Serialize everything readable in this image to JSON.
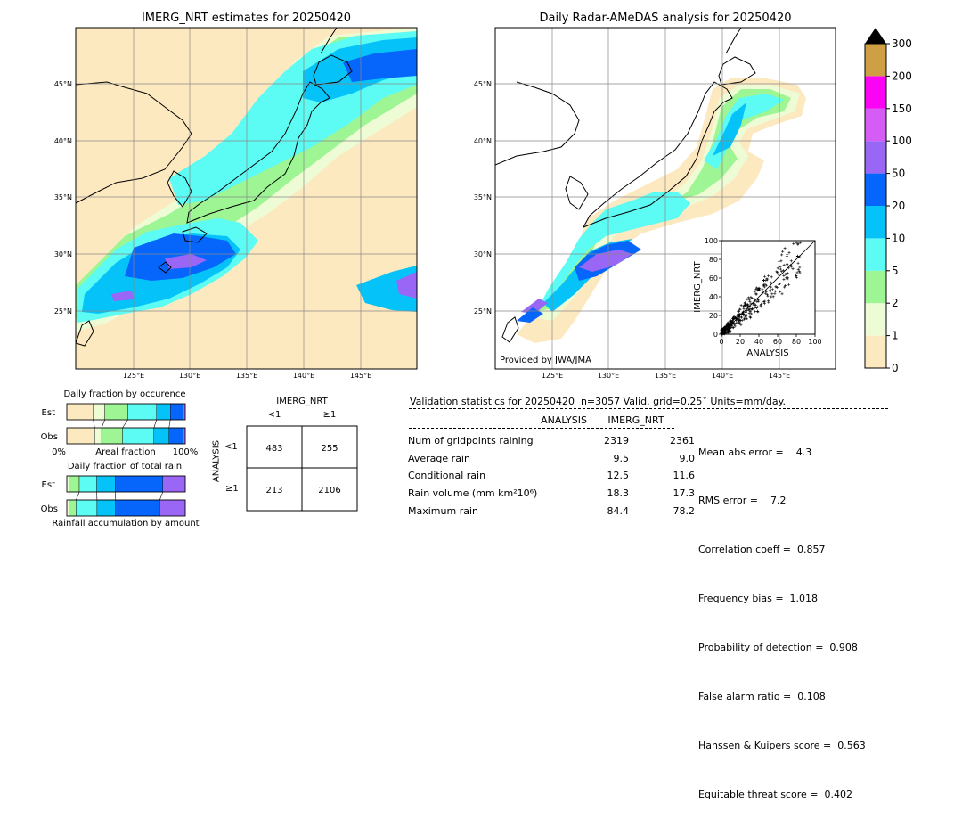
{
  "maps": {
    "left_title": "IMERG_NRT estimates for 20250420",
    "right_title": "Daily Radar-AMeDAS analysis for 20250420",
    "lat_labels": [
      "45°N",
      "40°N",
      "35°N",
      "30°N",
      "25°N"
    ],
    "lon_labels": [
      "125°E",
      "130°E",
      "135°E",
      "140°E",
      "145°E"
    ],
    "credit": "Provided by JWA/JMA"
  },
  "colorbar": {
    "tick_labels": [
      "0",
      "1",
      "2",
      "5",
      "10",
      "20",
      "50",
      "100",
      "150",
      "200",
      "300"
    ],
    "colors": [
      "#fde9c0",
      "#eefcd5",
      "#9ef593",
      "#5cfbf4",
      "#05c3f8",
      "#0665fb",
      "#9966f6",
      "#d55df6",
      "#fb04f6",
      "#ce9f43"
    ],
    "extend_color": "#000000"
  },
  "chart_data": [
    {
      "type": "scatter",
      "title": "",
      "xlabel": "ANALYSIS",
      "ylabel": "IMERG_NRT",
      "xlim": [
        0,
        100
      ],
      "ylim": [
        0,
        100
      ],
      "xticks": [
        "0",
        "20",
        "40",
        "60",
        "80",
        "100"
      ],
      "yticks": [
        "0",
        "20",
        "40",
        "60",
        "80",
        "100"
      ],
      "reference_line": "y=x",
      "summary": {
        "n": 3057,
        "max_analysis": 84.4,
        "max_imerg": 78.2,
        "correlation": 0.857
      }
    },
    {
      "type": "bar",
      "title": "Daily fraction by occurence",
      "categories": [
        "Est",
        "Obs"
      ],
      "xlabel_left": "0%",
      "xlabel_center": "Areal fraction",
      "xlabel_right": "100%",
      "stack_colors": [
        "#fde9c0",
        "#eefcd5",
        "#9ef593",
        "#5cfbf4",
        "#05c3f8",
        "#0665fb",
        "#9966f6"
      ],
      "series": [
        {
          "name": "Est",
          "fractions": [
            0.23,
            0.1,
            0.2,
            0.25,
            0.12,
            0.11,
            0.02
          ]
        },
        {
          "name": "Obs",
          "fractions": [
            0.24,
            0.06,
            0.18,
            0.27,
            0.13,
            0.12,
            0.02
          ]
        }
      ]
    },
    {
      "type": "bar",
      "title": "Daily fraction of total rain",
      "categories": [
        "Est",
        "Obs"
      ],
      "xlabel": "Rainfall accumulation by amount",
      "stack_colors": [
        "#eefcd5",
        "#9ef593",
        "#5cfbf4",
        "#05c3f8",
        "#0665fb",
        "#9966f6"
      ],
      "series": [
        {
          "name": "Est",
          "fractions": [
            0.02,
            0.08,
            0.14,
            0.15,
            0.38,
            0.18
          ]
        },
        {
          "name": "Obs",
          "fractions": [
            0.02,
            0.06,
            0.18,
            0.16,
            0.38,
            0.22
          ]
        }
      ]
    },
    {
      "type": "table",
      "title": "IMERG_NRT",
      "col_headers": [
        "<1",
        "≥1"
      ],
      "row_label": "ANALYSIS",
      "row_headers": [
        "<1",
        "≥1"
      ],
      "cells": [
        [
          "483",
          "255"
        ],
        [
          "213",
          "2106"
        ]
      ]
    }
  ],
  "validation": {
    "header": "Validation statistics for 20250420  n=3057 Valid. grid=0.25˚ Units=mm/day.",
    "col_analysis": "ANALYSIS",
    "col_imerg": "IMERG_NRT",
    "rows": [
      {
        "label": "Num of gridpoints raining",
        "analysis": "2319",
        "imerg": "2361"
      },
      {
        "label": "Average rain",
        "analysis": "9.5",
        "imerg": "9.0"
      },
      {
        "label": "Conditional rain",
        "analysis": "12.5",
        "imerg": "11.6"
      },
      {
        "label": "Rain volume (mm km²10⁶)",
        "analysis": "18.3",
        "imerg": "17.3"
      },
      {
        "label": "Maximum rain",
        "analysis": "84.4",
        "imerg": "78.2"
      }
    ],
    "scores": [
      "Mean abs error =    4.3",
      "RMS error =    7.2",
      "Correlation coeff =  0.857",
      "Frequency bias =  1.018",
      "Probability of detection =  0.908",
      "False alarm ratio =  0.108",
      "Hanssen & Kuipers score =  0.563",
      "Equitable threat score =  0.402"
    ]
  }
}
